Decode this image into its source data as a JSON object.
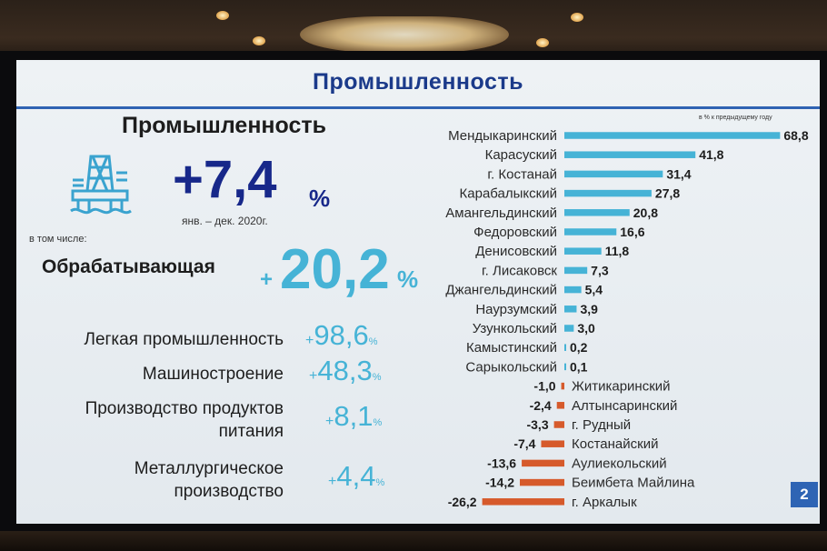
{
  "slide": {
    "banner_title": "Промышленность",
    "title": "Промышленность",
    "growth_value": "+7,4",
    "growth_unit": "%",
    "period": "янв. – дек. 2020г.",
    "including_label": "в том числе:",
    "manufacturing": {
      "label": "Обрабатывающая",
      "plus": "+",
      "value": "20,2",
      "unit": "%"
    },
    "subsectors": [
      {
        "label_lines": [
          "Легкая промышленность"
        ],
        "plus": "+",
        "value": "98,6",
        "unit": "%"
      },
      {
        "label_lines": [
          "Машиностроение"
        ],
        "plus": "+",
        "value": "48,3",
        "unit": "%"
      },
      {
        "label_lines": [
          "Производство продуктов",
          "питания"
        ],
        "plus": "+",
        "value": "8,1",
        "unit": "%"
      },
      {
        "label_lines": [
          "Металлургическое",
          "производство"
        ],
        "plus": "+",
        "value": "4,4",
        "unit": "%"
      }
    ],
    "chart_note": "в % к предыдущему году",
    "page_number": "2"
  },
  "colors": {
    "banner": "#1b3a8a",
    "headline": "#17288a",
    "accent": "#46b3d6",
    "positive_bar": "#46b3d6",
    "negative_bar": "#d65a2b",
    "badge": "#2e64b4"
  },
  "icons": [
    "oil-rig-icon"
  ],
  "chart_data": {
    "type": "bar",
    "orientation": "horizontal",
    "categories": [
      "Мендыкаринский",
      "Карасуский",
      "г. Костанай",
      "Карабалыкский",
      "Амангельдинский",
      "Федоровский",
      "Денисовский",
      "г. Лисаковск",
      "Джангельдинский",
      "Наурзумский",
      "Узункольский",
      "Камыстинский",
      "Сарыкольский",
      "Житикаринский",
      "Алтынсаринский",
      "г. Рудный",
      "Костанайский",
      "Аулиекольский",
      "Беимбета Майлина",
      "г. Аркалык"
    ],
    "values": [
      68.8,
      41.8,
      31.4,
      27.8,
      20.8,
      16.6,
      11.8,
      7.3,
      5.4,
      3.9,
      3.0,
      0.2,
      0.1,
      -1.0,
      -2.4,
      -3.3,
      -7.4,
      -13.6,
      -14.2,
      -26.2
    ],
    "value_labels": [
      "68,8",
      "41,8",
      "31,4",
      "27,8",
      "20,8",
      "16,6",
      "11,8",
      "7,3",
      "5,4",
      "3,9",
      "3,0",
      "0,2",
      "0,1",
      "-1,0",
      "-2,4",
      "-3,3",
      "-7,4",
      "-13,6",
      "-14,2",
      "-26,2"
    ],
    "title": "в % к предыдущему году",
    "xlim": [
      -26.2,
      68.8
    ],
    "grid": false,
    "legend": "none"
  }
}
